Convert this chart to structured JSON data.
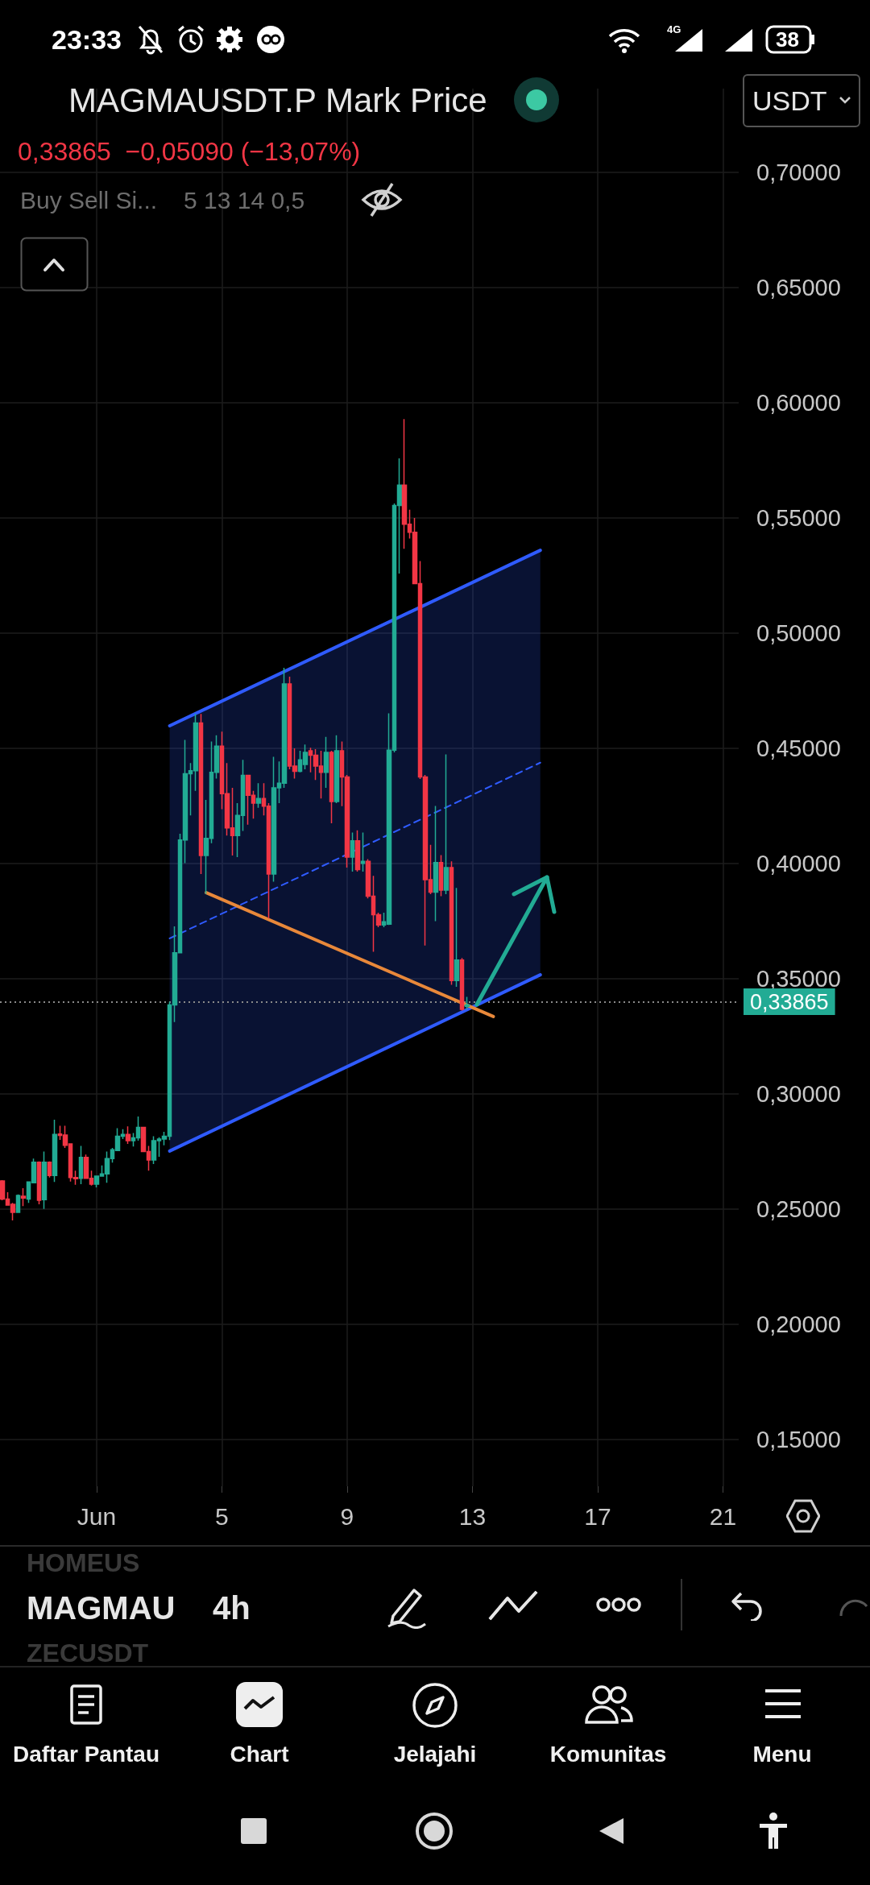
{
  "chart_data": {
    "type": "candlestick",
    "title": "MAGMAUSDT.P Mark Price",
    "subtitle": "0,33865  −0,05090 (−13,07%)",
    "annotations": [
      "Buy Sell Si...",
      "5 13 14 0,5",
      "USDT",
      "23:33",
      "4G",
      "38",
      "HOMEUS",
      "MAGMAU",
      "4h",
      "ZECUSDT",
      "Daftar Pantau",
      "Chart",
      "Jelajahi",
      "Komunitas",
      "Menu"
    ],
    "x": [
      "--05-29T00:00",
      "--05-29T04:00",
      "--05-29T08:00",
      "--05-29T12:00",
      "--05-29T16:00",
      "--05-29T20:00",
      "--05-30T00:00",
      "--05-30T04:00",
      "--05-30T08:00",
      "--05-30T12:00",
      "--05-30T16:00",
      "--05-30T20:00",
      "--05-31T00:00",
      "--05-31T04:00",
      "--05-31T08:00",
      "--05-31T12:00",
      "--05-31T16:00",
      "--05-31T20:00",
      "--06-01T00:00",
      "--06-01T04:00",
      "--06-01T08:00",
      "--06-01T12:00",
      "--06-01T16:00",
      "--06-01T20:00",
      "--06-02T00:00",
      "--06-02T04:00",
      "--06-02T08:00",
      "--06-02T12:00",
      "--06-02T16:00",
      "--06-02T20:00",
      "--06-03T00:00",
      "--06-03T04:00",
      "--06-03T08:00",
      "--06-03T12:00",
      "--06-03T16:00",
      "--06-03T20:00",
      "--06-04T00:00",
      "--06-04T04:00",
      "--06-04T08:00",
      "--06-04T12:00",
      "--06-04T16:00",
      "--06-04T20:00",
      "--06-05T00:00",
      "--06-05T04:00",
      "--06-05T08:00",
      "--06-05T12:00",
      "--06-05T16:00",
      "--06-05T20:00",
      "--06-06T00:00",
      "--06-06T04:00",
      "--06-06T08:00",
      "--06-06T12:00",
      "--06-06T16:00",
      "--06-06T20:00",
      "--06-07T00:00",
      "--06-07T04:00",
      "--06-07T08:00",
      "--06-07T12:00",
      "--06-07T16:00",
      "--06-07T20:00",
      "--06-08T00:00",
      "--06-08T04:00",
      "--06-08T08:00",
      "--06-08T12:00",
      "--06-08T16:00",
      "--06-08T20:00",
      "--06-09T00:00",
      "--06-09T04:00",
      "--06-09T08:00",
      "--06-09T12:00",
      "--06-09T16:00",
      "--06-09T20:00",
      "--06-10T00:00",
      "--06-10T04:00",
      "--06-10T08:00",
      "--06-10T12:00",
      "--06-10T16:00",
      "--06-10T20:00",
      "--06-11T00:00",
      "--06-11T04:00",
      "--06-11T08:00",
      "--06-11T12:00",
      "--06-11T16:00",
      "--06-11T20:00",
      "--06-12T00:00",
      "--06-12T04:00",
      "--06-12T08:00",
      "--06-12T12:00",
      "--06-12T16:00",
      "--06-12T20:00"
    ],
    "ohlc": [
      [
        0.2622,
        0.2626,
        0.2538,
        0.2544
      ],
      [
        0.2544,
        0.2573,
        0.2515,
        0.2517
      ],
      [
        0.2521,
        0.2527,
        0.2451,
        0.2486
      ],
      [
        0.2486,
        0.2564,
        0.2486,
        0.2559
      ],
      [
        0.2556,
        0.2591,
        0.2513,
        0.2548
      ],
      [
        0.2544,
        0.262,
        0.2527,
        0.2618
      ],
      [
        0.2614,
        0.2719,
        0.2614,
        0.2704
      ],
      [
        0.2704,
        0.2707,
        0.2521,
        0.2538
      ],
      [
        0.2541,
        0.275,
        0.2501,
        0.2704
      ],
      [
        0.2704,
        0.2707,
        0.2637,
        0.2646
      ],
      [
        0.2646,
        0.2888,
        0.2618,
        0.2824
      ],
      [
        0.2826,
        0.2862,
        0.2801,
        0.282
      ],
      [
        0.2822,
        0.2862,
        0.2766,
        0.2777
      ],
      [
        0.2783,
        0.2783,
        0.262,
        0.2637
      ],
      [
        0.2637,
        0.2667,
        0.2606,
        0.2632
      ],
      [
        0.2634,
        0.2774,
        0.2608,
        0.2725
      ],
      [
        0.2725,
        0.2737,
        0.2632,
        0.2634
      ],
      [
        0.2634,
        0.2667,
        0.2602,
        0.2608
      ],
      [
        0.2608,
        0.2643,
        0.2594,
        0.2643
      ],
      [
        0.2643,
        0.269,
        0.2641,
        0.2653
      ],
      [
        0.2653,
        0.275,
        0.2614,
        0.2719
      ],
      [
        0.2719,
        0.2766,
        0.2702,
        0.2758
      ],
      [
        0.2754,
        0.2851,
        0.2754,
        0.2816
      ],
      [
        0.2816,
        0.2847,
        0.2804,
        0.2824
      ],
      [
        0.2824,
        0.2859,
        0.2783,
        0.2797
      ],
      [
        0.2797,
        0.283,
        0.2772,
        0.2809
      ],
      [
        0.2809,
        0.2902,
        0.2797,
        0.2855
      ],
      [
        0.2855,
        0.2855,
        0.2748,
        0.275
      ],
      [
        0.275,
        0.2774,
        0.2667,
        0.2713
      ],
      [
        0.2713,
        0.2816,
        0.2696,
        0.2797
      ],
      [
        0.2797,
        0.2812,
        0.2727,
        0.2804
      ],
      [
        0.2804,
        0.2836,
        0.2777,
        0.2816
      ],
      [
        0.2816,
        0.34,
        0.28,
        0.3386
      ],
      [
        0.3386,
        0.3727,
        0.3312,
        0.3613
      ],
      [
        0.3613,
        0.4129,
        0.3613,
        0.4102
      ],
      [
        0.4102,
        0.4537,
        0.4002,
        0.439
      ],
      [
        0.439,
        0.4436,
        0.4209,
        0.4403
      ],
      [
        0.4403,
        0.465,
        0.4316,
        0.461
      ],
      [
        0.461,
        0.465,
        0.3955,
        0.4035
      ],
      [
        0.4035,
        0.4276,
        0.3868,
        0.4109
      ],
      [
        0.4109,
        0.453,
        0.4088,
        0.4396
      ],
      [
        0.4396,
        0.4557,
        0.4369,
        0.451
      ],
      [
        0.451,
        0.4573,
        0.4236,
        0.4303
      ],
      [
        0.4303,
        0.4436,
        0.4122,
        0.4155
      ],
      [
        0.4155,
        0.4329,
        0.4035,
        0.4122
      ],
      [
        0.4122,
        0.4262,
        0.4028,
        0.4209
      ],
      [
        0.4209,
        0.445,
        0.4142,
        0.4383
      ],
      [
        0.4383,
        0.4383,
        0.4169,
        0.4296
      ],
      [
        0.4296,
        0.4316,
        0.4195,
        0.4262
      ],
      [
        0.4262,
        0.4349,
        0.4242,
        0.4282
      ],
      [
        0.4282,
        0.4349,
        0.4209,
        0.4249
      ],
      [
        0.4249,
        0.4262,
        0.3761,
        0.3955
      ],
      [
        0.3955,
        0.4463,
        0.3921,
        0.4329
      ],
      [
        0.4329,
        0.4443,
        0.4262,
        0.4349
      ],
      [
        0.4349,
        0.485,
        0.4329,
        0.478
      ],
      [
        0.478,
        0.4811,
        0.4409,
        0.4423
      ],
      [
        0.4423,
        0.45,
        0.4369,
        0.44
      ],
      [
        0.44,
        0.449,
        0.4396,
        0.445
      ],
      [
        0.443,
        0.4517,
        0.4409,
        0.4483
      ],
      [
        0.449,
        0.4503,
        0.4396,
        0.447
      ],
      [
        0.447,
        0.4497,
        0.4363,
        0.4423
      ],
      [
        0.4423,
        0.449,
        0.4282,
        0.4396
      ],
      [
        0.4396,
        0.455,
        0.4329,
        0.4483
      ],
      [
        0.4483,
        0.449,
        0.4175,
        0.4269
      ],
      [
        0.4269,
        0.4557,
        0.4262,
        0.449
      ],
      [
        0.449,
        0.453,
        0.4249,
        0.4376
      ],
      [
        0.4376,
        0.4385,
        0.3983,
        0.4028
      ],
      [
        0.4028,
        0.4135,
        0.3965,
        0.4099
      ],
      [
        0.4099,
        0.4144,
        0.3965,
        0.3974
      ],
      [
        0.4001,
        0.4135,
        0.3965,
        0.401
      ],
      [
        0.401,
        0.4019,
        0.3849,
        0.3858
      ],
      [
        0.3858,
        0.3947,
        0.3617,
        0.3778
      ],
      [
        0.3778,
        0.3787,
        0.3724,
        0.3733
      ],
      [
        0.3733,
        0.3787,
        0.3724,
        0.3747
      ],
      [
        0.3737,
        0.4652,
        0.3733,
        0.4492
      ],
      [
        0.4492,
        0.5563,
        0.4483,
        0.5554
      ],
      [
        0.5554,
        0.5759,
        0.5259,
        0.5643
      ],
      [
        0.5643,
        0.5929,
        0.5366,
        0.5473
      ],
      [
        0.5473,
        0.5536,
        0.5411,
        0.5438
      ],
      [
        0.5438,
        0.55,
        0.5215,
        0.5215
      ],
      [
        0.5215,
        0.5313,
        0.4367,
        0.4376
      ],
      [
        0.4376,
        0.4385,
        0.3644,
        0.393
      ],
      [
        0.393,
        0.4081,
        0.3867,
        0.3876
      ],
      [
        0.3876,
        0.425,
        0.375,
        0.4004
      ],
      [
        0.4004,
        0.4037,
        0.3858,
        0.3885
      ],
      [
        0.3885,
        0.4474,
        0.3867,
        0.3983
      ],
      [
        0.3983,
        0.401,
        0.3474,
        0.3492
      ],
      [
        0.3492,
        0.3894,
        0.3465,
        0.3581
      ],
      [
        0.3581,
        0.359,
        0.3362,
        0.3367
      ],
      [
        0.338,
        0.3421,
        0.3367,
        0.33865
      ]
    ],
    "series": [
      {
        "type": "line",
        "color": "#2f5bff",
        "line_style": "solid",
        "x": [
          "--06-03T08:00",
          "--06-15T04:00"
        ],
        "values": [
          0.4598,
          0.536
        ]
      },
      {
        "type": "line",
        "color": "#2f5bff",
        "line_style": "solid",
        "x": [
          "--06-03T08:00",
          "--06-15T04:00"
        ],
        "values": [
          0.2752,
          0.3517
        ]
      },
      {
        "type": "line",
        "color": "#2f5bff",
        "line_style": "dashed",
        "x": [
          "--06-03T08:00",
          "--06-15T04:00"
        ],
        "values": [
          0.3675,
          0.4438
        ],
        "lower": [
          0.2752,
          0.3517
        ],
        "upper": [
          0.4598,
          0.536
        ]
      },
      {
        "type": "line",
        "color": "#e8883a",
        "line_style": "solid",
        "x": [
          "--06-04T12:00",
          "--06-13T16:00"
        ],
        "values": [
          0.3874,
          0.3336
        ]
      }
    ],
    "marker": "none",
    "ref_lines": [
      {
        "axis": "y",
        "value": 0.33865,
        "label": "0,33865",
        "line_style": "dotted"
      }
    ],
    "xlim": [
      "--05-28T22:00",
      "--06-21T12:00"
    ],
    "xticks": [
      {
        "value": "--06-01",
        "label": "Jun"
      },
      {
        "value": "--06-05",
        "label": "5"
      },
      {
        "value": "--06-09",
        "label": "9"
      },
      {
        "value": "--06-13",
        "label": "13"
      },
      {
        "value": "--06-17",
        "label": "17"
      },
      {
        "value": "--06-21",
        "label": "21"
      }
    ],
    "ylim": [
      0.1297,
      0.7364
    ],
    "yticks": [
      {
        "value": 0.15,
        "label": "0,15000"
      },
      {
        "value": 0.2,
        "label": "0,20000"
      },
      {
        "value": 0.25,
        "label": "0,25000"
      },
      {
        "value": 0.3,
        "label": "0,30000"
      },
      {
        "value": 0.35,
        "label": "0,35000"
      },
      {
        "value": 0.4,
        "label": "0,40000"
      },
      {
        "value": 0.45,
        "label": "0,45000"
      },
      {
        "value": 0.5,
        "label": "0,50000"
      },
      {
        "value": 0.55,
        "label": "0,55000"
      },
      {
        "value": 0.6,
        "label": "0,60000"
      },
      {
        "value": 0.65,
        "label": "0,65000"
      },
      {
        "value": 0.7,
        "label": "0,70000"
      }
    ],
    "grid": true
  }
}
